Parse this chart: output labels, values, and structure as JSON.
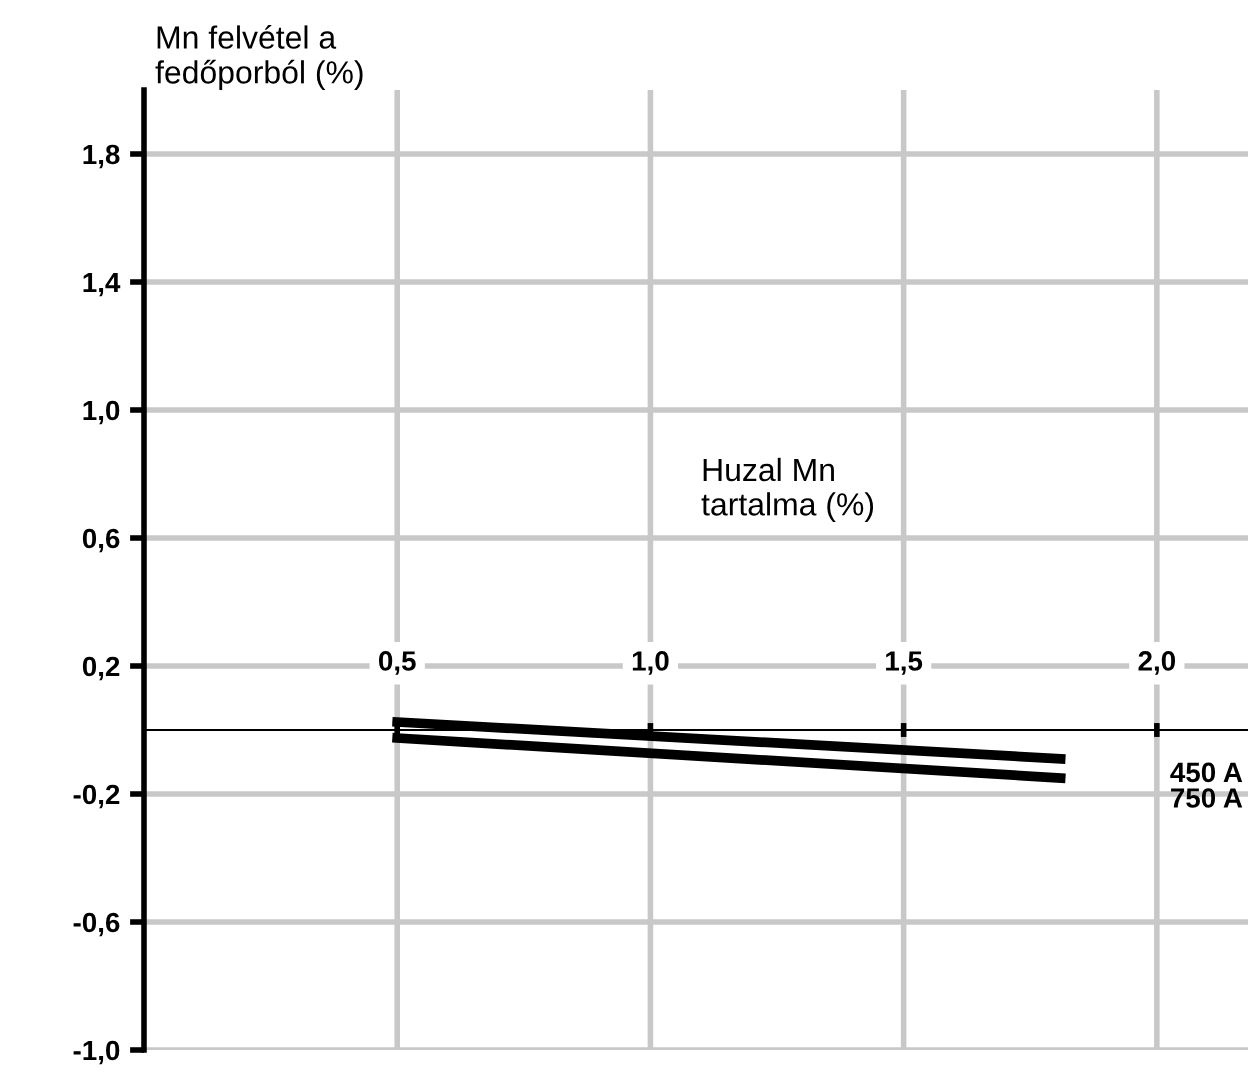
{
  "chart_data": {
    "type": "line",
    "ylabel": "Mn felvétel a\nfedőporból (%)",
    "xlabel": "Huzal Mn\ntartalma (%)",
    "x": [
      0.5,
      1.81
    ],
    "series": [
      {
        "name": "450 A",
        "color": "#000000",
        "values": [
          0.025,
          -0.09
        ]
      },
      {
        "name": "750 A",
        "color": "#000000",
        "values": [
          -0.025,
          -0.15
        ]
      }
    ],
    "xlim": [
      0,
      2.18
    ],
    "ylim": [
      -1.0,
      2.0
    ],
    "xticks": [
      {
        "value": 0.5,
        "label": "0,5"
      },
      {
        "value": 1.0,
        "label": "1,0"
      },
      {
        "value": 1.5,
        "label": "1,5"
      },
      {
        "value": 2.0,
        "label": "2,0"
      }
    ],
    "yticks": [
      {
        "value": -1.0,
        "label": "-1,0"
      },
      {
        "value": -0.6,
        "label": "-0,6"
      },
      {
        "value": -0.2,
        "label": "-0,2"
      },
      {
        "value": 0.2,
        "label": "0,2"
      },
      {
        "value": 0.6,
        "label": "0,6"
      },
      {
        "value": 1.0,
        "label": "1,0"
      },
      {
        "value": 1.4,
        "label": "1,4"
      },
      {
        "value": 1.8,
        "label": "1,8"
      }
    ],
    "grid": true,
    "legend": false,
    "marker": "none",
    "line_style": "solid"
  }
}
